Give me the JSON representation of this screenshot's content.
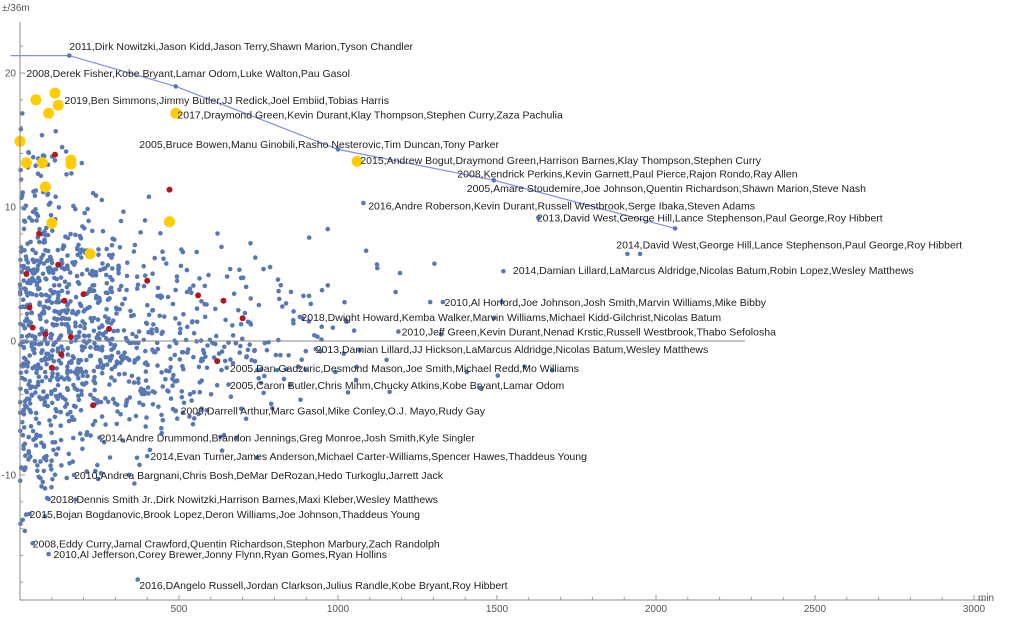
{
  "chart_data": {
    "type": "scatter",
    "xlabel": "min",
    "ylabel": "±/36m",
    "xlim": [
      0,
      3000
    ],
    "ylim": [
      -18.5,
      24.5
    ],
    "x_ticks": [
      500,
      1000,
      1500,
      2000,
      2500,
      3000
    ],
    "y_ticks": [
      20,
      10,
      0,
      -10
    ],
    "colors": {
      "base": "#5878b4",
      "red": "#b0171f",
      "gold": "#ffcc00",
      "line": "#7e8fe6"
    },
    "highlight_line": [
      [
        -30,
        21.3
      ],
      [
        155,
        21.3
      ],
      [
        490,
        19.0
      ],
      [
        1000,
        14.3
      ],
      [
        1490,
        12.0
      ],
      [
        2060,
        8.4
      ]
    ],
    "gold_points": [
      [
        0,
        14.9
      ],
      [
        20,
        13.3
      ],
      [
        50,
        18.0
      ],
      [
        70,
        13.3
      ],
      [
        80,
        11.5
      ],
      [
        90,
        17.0
      ],
      [
        100,
        8.8
      ],
      [
        110,
        18.5
      ],
      [
        120,
        17.6
      ],
      [
        160,
        13.2
      ],
      [
        160,
        13.5
      ],
      [
        220,
        6.5
      ],
      [
        490,
        17.0
      ],
      [
        470,
        8.9
      ],
      [
        1060,
        13.4
      ]
    ],
    "red_points": [
      [
        20,
        5.0
      ],
      [
        30,
        2.5
      ],
      [
        40,
        1.0
      ],
      [
        60,
        8.0
      ],
      [
        80,
        0.5
      ],
      [
        100,
        -2.0
      ],
      [
        110,
        13.9
      ],
      [
        120,
        5.7
      ],
      [
        130,
        -1.0
      ],
      [
        140,
        3.0
      ],
      [
        160,
        0.3
      ],
      [
        200,
        3.5
      ],
      [
        230,
        -4.8
      ],
      [
        280,
        0.9
      ],
      [
        400,
        4.5
      ],
      [
        470,
        11.3
      ],
      [
        560,
        3.4
      ],
      [
        620,
        -1.5
      ],
      [
        640,
        3.0
      ],
      [
        700,
        1.7
      ]
    ],
    "annotations": [
      {
        "text": "2011,Dirk Nowitzki,Jason Kidd,Jason Terry,Shawn Marion,Tyson Chandler",
        "x": 155,
        "y": 22.0
      },
      {
        "text": "2008,Derek Fisher,Kobe Bryant,Lamar Odom,Luke Walton,Pau Gasol",
        "x": 20,
        "y": 20.0
      },
      {
        "text": "2019,Ben Simmons,Jimmy Butler,JJ Redick,Joel Embiid,Tobias Harris",
        "x": 140,
        "y": 18.0
      },
      {
        "text": "2017,Draymond Green,Kevin Durant,Klay Thompson,Stephen Curry,Zaza Pachulia",
        "x": 495,
        "y": 16.9
      },
      {
        "text": "2005,Bruce Bowen,Manu Ginobili,Rasho Nesterovic,Tim Duncan,Tony Parker",
        "x": 375,
        "y": 14.7
      },
      {
        "text": "2015,Andrew Bogut,Draymond Green,Harrison Barnes,Klay Thompson,Stephen Curry",
        "x": 1070,
        "y": 13.5
      },
      {
        "text": "2008,Kendrick Perkins,Kevin Garnett,Paul Pierce,Rajon Rondo,Ray Allen",
        "x": 1375,
        "y": 12.5
      },
      {
        "text": "2005,Amare Stoudemire,Joe Johnson,Quentin Richardson,Shawn Marion,Steve Nash",
        "x": 1405,
        "y": 11.4
      },
      {
        "text": "2016,Andre Roberson,Kevin Durant,Russell Westbrook,Serge Ibaka,Steven Adams",
        "x": 1095,
        "y": 10.1
      },
      {
        "text": "2013,David West,George Hill,Lance Stephenson,Paul George,Roy Hibbert",
        "x": 1625,
        "y": 9.2
      },
      {
        "text": "2014,David West,George Hill,Lance Stephenson,Paul George,Roy Hibbert",
        "x": 1875,
        "y": 7.2
      },
      {
        "text": "2014,Damian Lillard,LaMarcus Aldridge,Nicolas Batum,Robin Lopez,Wesley Matthews",
        "x": 1550,
        "y": 5.3
      },
      {
        "text": "2010,Al Horford,Joe Johnson,Josh Smith,Marvin Williams,Mike Bibby",
        "x": 1335,
        "y": 2.9
      },
      {
        "text": "2018,Dwight Howard,Kemba Walker,Marvin Williams,Michael Kidd-Gilchrist,Nicolas Batum",
        "x": 885,
        "y": 1.8
      },
      {
        "text": "2010,Jeff Green,Kevin Durant,Nenad Krstic,Russell Westbrook,Thabo Sefolosha",
        "x": 1200,
        "y": 0.7
      },
      {
        "text": "2013,Damian Lillard,JJ Hickson,LaMarcus Aldridge,Nicolas Batum,Wesley Matthews",
        "x": 930,
        "y": -0.6
      },
      {
        "text": "2005,Dan Gadzuric,Desmond Mason,Joe Smith,Michael Redd,Mo Williams",
        "x": 660,
        "y": -2.0
      },
      {
        "text": "2005,Caron Butler,Chris Mihm,Chucky Atkins,Kobe Bryant,Lamar Odom",
        "x": 660,
        "y": -3.3
      },
      {
        "text": "2009,Darrell Arthur,Marc Gasol,Mike Conley,O.J. Mayo,Rudy Gay",
        "x": 505,
        "y": -5.2
      },
      {
        "text": "2014,Andre Drummond,Brandon Jennings,Greg Monroe,Josh Smith,Kyle Singler",
        "x": 250,
        "y": -7.2
      },
      {
        "text": "2014,Evan Turner,James Anderson,Michael Carter-Williams,Spencer Hawes,Thaddeus Young",
        "x": 410,
        "y": -8.6
      },
      {
        "text": "2010,Andrea Bargnani,Chris Bosh,DeMar DeRozan,Hedo Turkoglu,Jarrett Jack",
        "x": 170,
        "y": -10.0
      },
      {
        "text": "2018,Dennis Smith Jr.,Dirk Nowitzki,Harrison Barnes,Maxi Kleber,Wesley Matthews",
        "x": 95,
        "y": -11.8
      },
      {
        "text": "2015,Bojan Bogdanovic,Brook Lopez,Deron Williams,Joe Johnson,Thaddeus Young",
        "x": 30,
        "y": -12.9
      },
      {
        "text": "2008,Eddy Curry,Jamal Crawford,Quentin Richardson,Stephon Marbury,Zach Randolph",
        "x": 40,
        "y": -15.1
      },
      {
        "text": "2010,Al Jefferson,Corey Brewer,Jonny Flynn,Ryan Gomes,Ryan Hollins",
        "x": 105,
        "y": -15.9
      },
      {
        "text": "2016,DAngelo Russell,Jordan Clarkson,Julius Randle,Kobe Bryant,Roy Hibbert",
        "x": 375,
        "y": -18.2
      }
    ]
  }
}
